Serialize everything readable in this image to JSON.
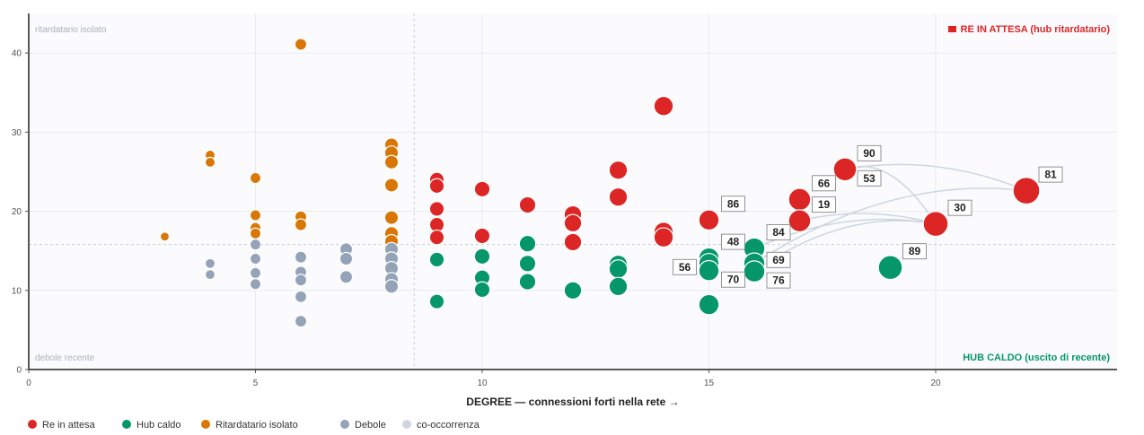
{
  "chart_data": {
    "type": "scatter",
    "xlabel": "DEGREE — connessioni forti nella rete →",
    "ylabel": "",
    "xlim": [
      0,
      24
    ],
    "ylim": [
      0,
      45
    ],
    "x_ticks": [
      0,
      5,
      10,
      15,
      20
    ],
    "y_ticks": [
      0,
      10,
      20,
      30,
      40
    ],
    "median_x": 8.5,
    "median_y": 15.8,
    "corners": {
      "top_left": "ritardatario isolato",
      "bottom_left": "debole recente",
      "top_right": "RE IN ATTESA (hub ritardatario)",
      "bottom_right": "HUB CALDO (uscito di recente)"
    },
    "legend": [
      {
        "name": "Re in attesa",
        "color": "#dc2626",
        "kind": "dot"
      },
      {
        "name": "Hub caldo",
        "color": "#059669",
        "kind": "dot"
      },
      {
        "name": "Ritardatario isolato",
        "color": "#d97706",
        "kind": "dot"
      },
      {
        "name": "Debole",
        "color": "#94a3b8",
        "kind": "dot"
      },
      {
        "name": "co-occorrenza",
        "color": "#d1d5db",
        "kind": "dot"
      }
    ],
    "colors": {
      "re": "#dc2626",
      "hub": "#059669",
      "rit": "#d97706",
      "deb": "#94a3b8",
      "link": "#cbd5e1"
    },
    "series": [
      {
        "name": "Re in attesa",
        "key": "re",
        "points": [
          [
            9,
            24
          ],
          [
            9,
            23.2
          ],
          [
            9,
            20.3
          ],
          [
            9,
            18.3
          ],
          [
            9,
            16.7
          ],
          [
            10,
            22.8
          ],
          [
            10,
            16.9
          ],
          [
            11,
            20.8
          ],
          [
            12,
            19.6
          ],
          [
            12,
            18.5
          ],
          [
            12,
            16.1
          ],
          [
            13,
            25.2
          ],
          [
            13,
            21.8
          ],
          [
            14,
            33.3
          ],
          [
            14,
            17.4
          ],
          [
            14,
            16.7
          ],
          [
            15,
            18.9
          ],
          [
            17,
            21.5
          ],
          [
            17,
            18.8
          ],
          [
            18,
            25.3
          ],
          [
            20,
            18.4
          ],
          [
            22,
            22.6
          ]
        ]
      },
      {
        "name": "Hub caldo",
        "key": "hub",
        "points": [
          [
            9,
            13.9
          ],
          [
            9,
            8.6
          ],
          [
            10,
            14.3
          ],
          [
            10,
            11.6
          ],
          [
            10,
            10.1
          ],
          [
            11,
            15.9
          ],
          [
            11,
            13.4
          ],
          [
            11,
            11.1
          ],
          [
            12,
            10
          ],
          [
            13,
            13.3
          ],
          [
            13,
            12.7
          ],
          [
            13,
            10.5
          ],
          [
            15,
            14.1
          ],
          [
            15,
            13.4
          ],
          [
            15,
            12.5
          ],
          [
            15,
            8.2
          ],
          [
            16,
            15.3
          ],
          [
            16,
            13.4
          ],
          [
            16,
            12.4
          ],
          [
            19,
            12.9
          ]
        ]
      },
      {
        "name": "Ritardatario isolato",
        "key": "rit",
        "points": [
          [
            3,
            16.8
          ],
          [
            4,
            27.1
          ],
          [
            4,
            26.2
          ],
          [
            5,
            24.2
          ],
          [
            5,
            19.5
          ],
          [
            5,
            17.9
          ],
          [
            5,
            17.2
          ],
          [
            6,
            41.1
          ],
          [
            6,
            19.3
          ],
          [
            6,
            18.3
          ],
          [
            8,
            28.4
          ],
          [
            8,
            27.4
          ],
          [
            8,
            26.2
          ],
          [
            8,
            23.3
          ],
          [
            8,
            19.2
          ],
          [
            8,
            17.2
          ],
          [
            8,
            16.2
          ]
        ]
      },
      {
        "name": "Debole",
        "key": "deb",
        "points": [
          [
            4,
            13.4
          ],
          [
            4,
            12
          ],
          [
            5,
            15.8
          ],
          [
            5,
            14
          ],
          [
            5,
            12.2
          ],
          [
            5,
            10.8
          ],
          [
            6,
            14.2
          ],
          [
            6,
            12.3
          ],
          [
            6,
            11.3
          ],
          [
            6,
            9.2
          ],
          [
            6,
            6.1
          ],
          [
            7,
            15.2
          ],
          [
            7,
            14
          ],
          [
            7,
            11.7
          ],
          [
            8,
            15.2
          ],
          [
            8,
            14
          ],
          [
            8,
            12.8
          ],
          [
            8,
            11.4
          ],
          [
            8,
            10.5
          ]
        ]
      }
    ],
    "labels": [
      {
        "text": "90",
        "x": 18,
        "y": 25.3,
        "pos": "ur"
      },
      {
        "text": "66",
        "x": 17,
        "y": 21.5,
        "pos": "ur"
      },
      {
        "text": "53",
        "x": 18,
        "y": 25.3,
        "pos": "dr"
      },
      {
        "text": "19",
        "x": 17,
        "y": 18.8,
        "pos": "ur"
      },
      {
        "text": "86",
        "x": 15,
        "y": 18.9,
        "pos": "ur"
      },
      {
        "text": "48",
        "x": 15,
        "y": 14.1,
        "pos": "ur"
      },
      {
        "text": "56",
        "x": 15,
        "y": 13.4,
        "pos": "ul"
      },
      {
        "text": "70",
        "x": 15,
        "y": 12.5,
        "pos": "dr"
      },
      {
        "text": "84",
        "x": 16,
        "y": 15.3,
        "pos": "ur"
      },
      {
        "text": "69",
        "x": 16,
        "y": 13.4,
        "pos": "r"
      },
      {
        "text": "76",
        "x": 16,
        "y": 12.4,
        "pos": "dr"
      },
      {
        "text": "30",
        "x": 20,
        "y": 18.4,
        "pos": "ur"
      },
      {
        "text": "81",
        "x": 22,
        "y": 22.6,
        "pos": "ur"
      },
      {
        "text": "89",
        "x": 19,
        "y": 12.9,
        "pos": "ur"
      }
    ],
    "links": [
      [
        [
          18,
          25.3
        ],
        [
          22,
          22.6
        ]
      ],
      [
        [
          18,
          25.3
        ],
        [
          20,
          18.4
        ]
      ],
      [
        [
          16,
          15.3
        ],
        [
          20,
          18.4
        ]
      ],
      [
        [
          16,
          13.4
        ],
        [
          22,
          22.6
        ]
      ],
      [
        [
          16,
          12.4
        ],
        [
          20,
          18.4
        ]
      ],
      [
        [
          17,
          18.8
        ],
        [
          20,
          18.4
        ]
      ]
    ]
  }
}
